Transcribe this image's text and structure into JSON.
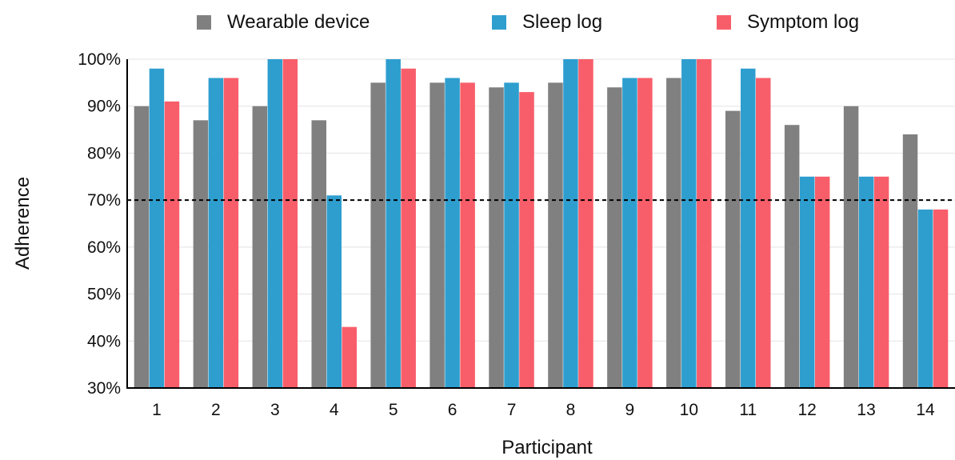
{
  "chart_data": {
    "type": "bar",
    "title": "",
    "xlabel": "Participant",
    "ylabel": "Adherence",
    "ylim": [
      30,
      100
    ],
    "yticks": [
      "30%",
      "40%",
      "50%",
      "60%",
      "70%",
      "80%",
      "90%",
      "100%"
    ],
    "ytick_values": [
      30,
      40,
      50,
      60,
      70,
      80,
      90,
      100
    ],
    "categories": [
      "1",
      "2",
      "3",
      "4",
      "5",
      "6",
      "7",
      "8",
      "9",
      "10",
      "11",
      "12",
      "13",
      "14"
    ],
    "reference_line": {
      "value": 70,
      "style": "dashed",
      "color": "#000000"
    },
    "grid": "horizontal",
    "legend_position": "top",
    "series": [
      {
        "name": "Wearable device",
        "color": "#808080",
        "values": [
          90,
          87,
          90,
          87,
          95,
          95,
          94,
          95,
          94,
          96,
          89,
          86,
          90,
          84
        ]
      },
      {
        "name": "Sleep log",
        "color": "#2e9ecf",
        "values": [
          98,
          96,
          100,
          71,
          100,
          96,
          95,
          100,
          96,
          100,
          98,
          75,
          75,
          68
        ]
      },
      {
        "name": "Symptom log",
        "color": "#f85e6a",
        "values": [
          91,
          96,
          100,
          43,
          98,
          95,
          93,
          100,
          96,
          100,
          96,
          75,
          75,
          68
        ]
      }
    ]
  }
}
